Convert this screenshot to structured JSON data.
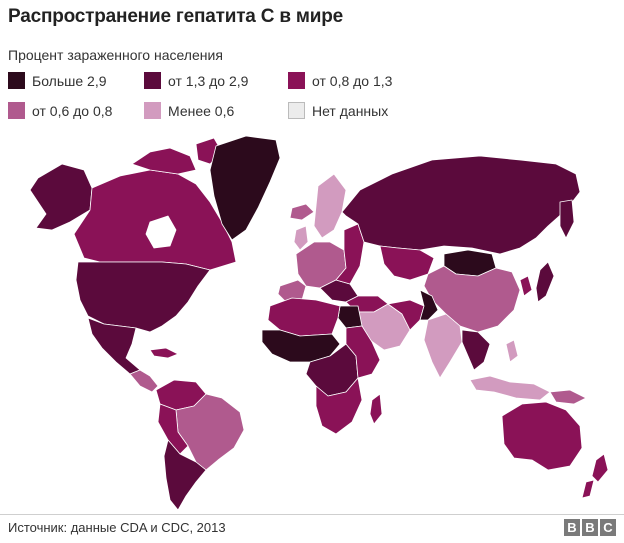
{
  "title": "Распространение гепатита С в мире",
  "subtitle": "Процент зараженного населения",
  "legend": [
    {
      "label": "Больше 2,9",
      "color": "#2c0a1c"
    },
    {
      "label": "от 1,3 до 2,9",
      "color": "#5b0a3c"
    },
    {
      "label": "от 0,8 до 1,3",
      "color": "#8a1257"
    },
    {
      "label": "от 0,6 до 0,8",
      "color": "#b05a8e"
    },
    {
      "label": "Менее 0,6",
      "color": "#d29bbf"
    },
    {
      "label": "Нет данных",
      "color": "#ececec"
    }
  ],
  "source": "Источник: данные CDA и CDC, 2013",
  "logo": {
    "letters": [
      "B",
      "B",
      "C"
    ]
  }
}
